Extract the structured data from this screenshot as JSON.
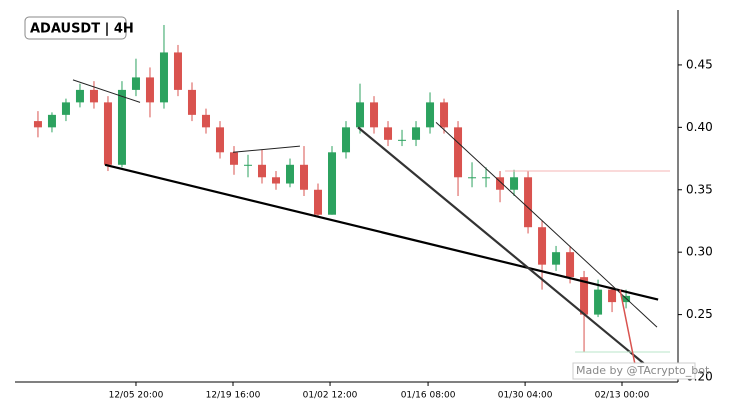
{
  "chart_data": {
    "type": "candlestick",
    "title": "ADAUSDT | 4H",
    "watermark": "Made by @TAcrypto_bot",
    "categories": [
      null,
      null,
      null,
      null,
      null,
      null,
      null,
      null,
      null,
      null,
      null,
      null,
      null,
      null,
      null,
      null,
      null,
      null,
      null,
      null,
      null,
      null,
      null,
      null,
      null,
      null,
      null,
      null,
      null,
      null,
      null,
      null,
      null,
      null,
      null,
      null,
      null,
      null,
      null,
      null,
      null,
      null,
      null
    ],
    "open": [
      0.405,
      0.4,
      0.41,
      0.42,
      0.43,
      0.42,
      0.37,
      0.43,
      0.44,
      0.42,
      0.46,
      0.43,
      0.41,
      0.4,
      0.38,
      0.37,
      0.37,
      0.36,
      0.355,
      0.37,
      0.35,
      0.33,
      0.38,
      0.4,
      0.42,
      0.4,
      0.39,
      0.39,
      0.4,
      0.42,
      0.4,
      0.36,
      0.36,
      0.36,
      0.35,
      0.36,
      0.32,
      0.29,
      0.3,
      0.28,
      0.25,
      0.27,
      0.26
    ],
    "high": [
      0.413,
      0.412,
      0.423,
      0.435,
      0.437,
      0.425,
      0.437,
      0.455,
      0.448,
      0.482,
      0.466,
      0.436,
      0.415,
      0.405,
      0.385,
      0.378,
      0.382,
      0.365,
      0.375,
      0.385,
      0.355,
      0.385,
      0.405,
      0.435,
      0.425,
      0.405,
      0.398,
      0.405,
      0.428,
      0.423,
      0.405,
      0.372,
      0.368,
      0.365,
      0.366,
      0.365,
      0.325,
      0.305,
      0.305,
      0.285,
      0.278,
      0.272,
      0.27
    ],
    "low": [
      0.392,
      0.396,
      0.405,
      0.416,
      0.415,
      0.365,
      0.368,
      0.425,
      0.408,
      0.415,
      0.425,
      0.405,
      0.395,
      0.375,
      0.362,
      0.36,
      0.355,
      0.35,
      0.352,
      0.345,
      0.328,
      0.33,
      0.375,
      0.395,
      0.395,
      0.385,
      0.385,
      0.385,
      0.395,
      0.395,
      0.345,
      0.352,
      0.352,
      0.34,
      0.345,
      0.315,
      0.27,
      0.285,
      0.275,
      0.22,
      0.248,
      0.252,
      0.255
    ],
    "close": [
      0.4,
      0.41,
      0.42,
      0.43,
      0.42,
      0.37,
      0.43,
      0.44,
      0.42,
      0.46,
      0.43,
      0.41,
      0.4,
      0.38,
      0.37,
      0.37,
      0.36,
      0.355,
      0.37,
      0.35,
      0.33,
      0.38,
      0.4,
      0.42,
      0.4,
      0.39,
      0.39,
      0.4,
      0.42,
      0.4,
      0.36,
      0.36,
      0.36,
      0.35,
      0.36,
      0.32,
      0.29,
      0.3,
      0.28,
      0.25,
      0.27,
      0.26,
      0.265
    ],
    "up_color": "#2ca25f",
    "down_color": "#d9534f",
    "xlim": [
      -1.64,
      45.71
    ],
    "xticks": [
      {
        "value": 7,
        "label": "12/05 20:00"
      },
      {
        "value": 13.93,
        "label": "12/19 16:00"
      },
      {
        "value": 20.86,
        "label": "01/02 12:00"
      },
      {
        "value": 27.86,
        "label": "01/16 08:00"
      },
      {
        "value": 34.79,
        "label": "01/30 04:00"
      },
      {
        "value": 41.71,
        "label": "02/13 00:00"
      }
    ],
    "ylim": [
      0.196,
      0.494
    ],
    "yticks": [
      {
        "value": 0.2,
        "label": "0.20"
      },
      0.25,
      {
        "value": 0.3,
        "label": "0.30"
      },
      0.35,
      {
        "value": 0.4,
        "label": "0.40"
      },
      0.45
    ],
    "lines": [
      {
        "x": [
          4.79,
          44.29
        ],
        "y": [
          0.37,
          0.262
        ],
        "color": "#000000",
        "width": 2.2
      },
      {
        "x": [
          22.86,
          43.36
        ],
        "y": [
          0.4,
          0.21
        ],
        "color": "#333333",
        "width": 2.2
      },
      {
        "x": [
          28.43,
          44.21
        ],
        "y": [
          0.404,
          0.24
        ],
        "color": "#222222",
        "width": 1
      },
      {
        "x": [
          2.5,
          7.29
        ],
        "y": [
          0.438,
          0.42
        ],
        "color": "#222222",
        "width": 1
      },
      {
        "x": [
          13.93,
          18.71
        ],
        "y": [
          0.38,
          0.385
        ],
        "color": "#222222",
        "width": 1
      },
      {
        "x": [
          33.36,
          45.14
        ],
        "y": [
          0.365,
          0.365
        ],
        "color": "#f4b6b6",
        "width": 1
      },
      {
        "x": [
          38.36,
          45.14
        ],
        "y": [
          0.22,
          0.22
        ],
        "color": "#b9e4c9",
        "width": 1
      },
      {
        "x": [
          41.57,
          42.64
        ],
        "y": [
          0.27,
          0.21
        ],
        "color": "#d9534f",
        "width": 1.5
      }
    ]
  }
}
